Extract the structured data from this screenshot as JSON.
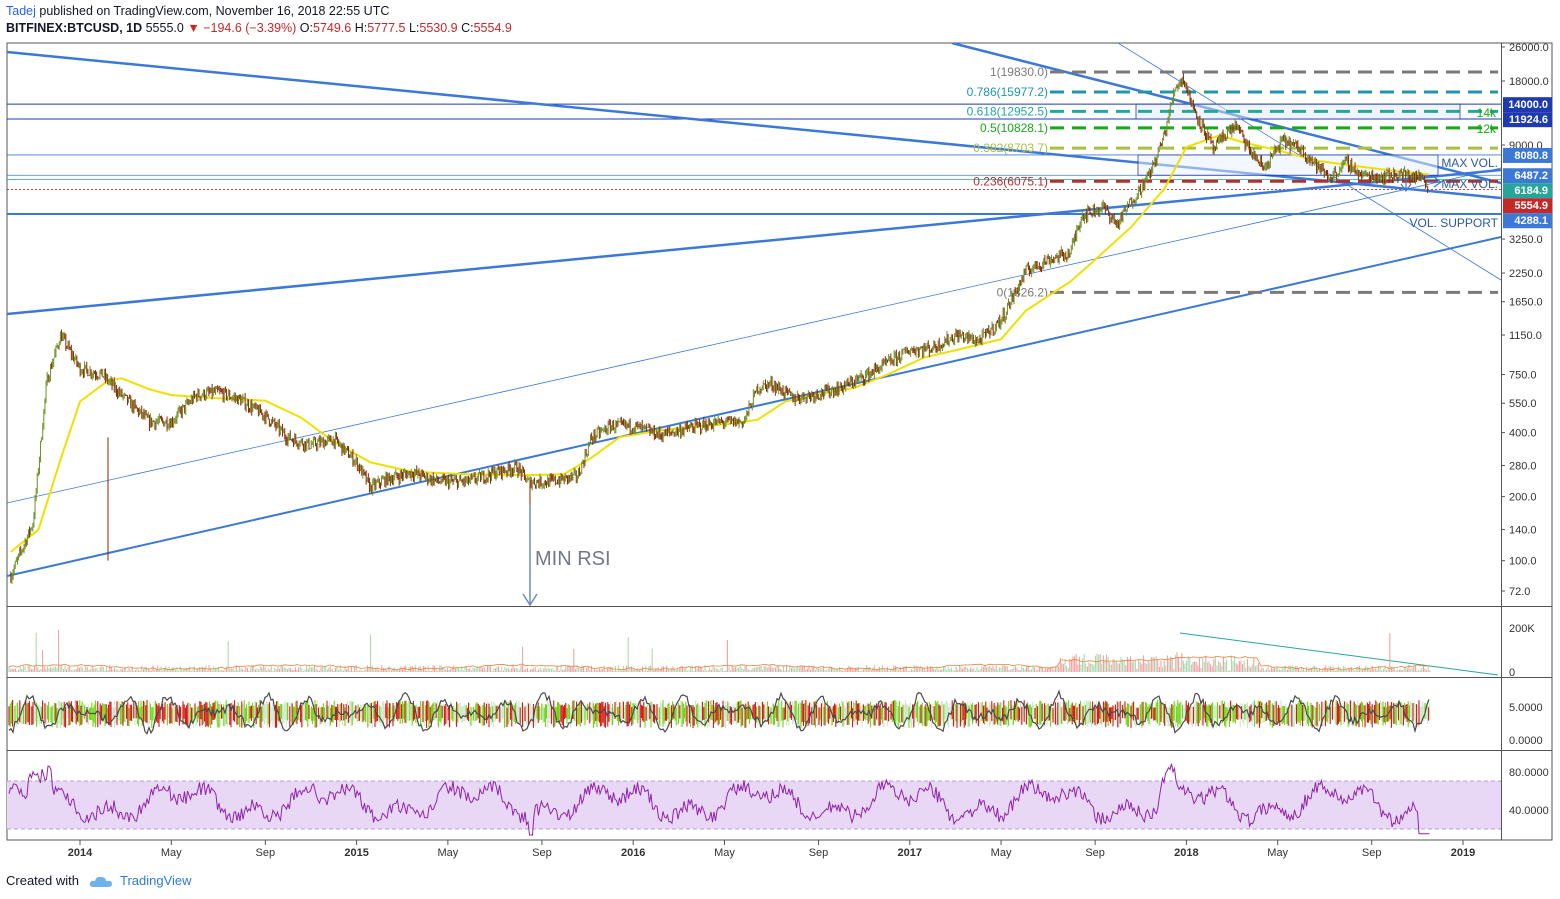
{
  "header": {
    "author": "Tadej",
    "published": "published on TradingView.com, November 16, 2018 22:55 UTC",
    "symbol": "BITFINEX:BTCUSD, 1D",
    "last": "5555.0",
    "change_arrow": "▼",
    "change": "−194.6 (−3.39%)",
    "o_label": "O:",
    "o_value": "5749.6",
    "h_label": "H:",
    "h_value": "5777.5",
    "l_label": "L:",
    "l_value": "5530.9",
    "c_label": "C:",
    "c_value": "5554.9"
  },
  "footer": {
    "created_with": "Created with",
    "brand": "TradingView"
  },
  "colors": {
    "trendline": "#3c78d8",
    "ma": "#f0e000",
    "candle_up": "#6b8e23",
    "candle_down": "#8b2500",
    "rsi_line": "#8e24aa",
    "rsi_band": "#e8d8f5"
  },
  "chart_data": [
    {
      "type": "line",
      "title": "BITFINEX:BTCUSD, 1D",
      "scale": "log",
      "y_ticks": [
        "26000.0",
        "18000.0",
        "14000.0",
        "11924.6",
        "9000.0",
        "8080.8",
        "6487.2",
        "6184.9",
        "5554.9",
        "4288.1",
        "3250.0",
        "2250.0",
        "1650.0",
        "1150.0",
        "750.0",
        "550.0",
        "400.0",
        "280.0",
        "200.0",
        "140.0",
        "100.0",
        "72.0"
      ],
      "price_tags": [
        {
          "label": "14000.0",
          "value": 14000,
          "color": "#1e3ab0"
        },
        {
          "label": "11924.6",
          "value": 11924.6,
          "color": "#1e3ab0"
        },
        {
          "label": "8080.8",
          "value": 8080.8,
          "color": "#3c78d8"
        },
        {
          "label": "6487.2",
          "value": 6487.2,
          "color": "#3c78d8"
        },
        {
          "label": "6184.9",
          "value": 6184.9,
          "color": "#26a69a"
        },
        {
          "label": "5554.9",
          "value": 5554.9,
          "color": "#c62828"
        },
        {
          "label": "4288.1",
          "value": 4288.1,
          "color": "#3c78d8"
        }
      ],
      "x_ticks": [
        "2014",
        "May",
        "Sep",
        "2015",
        "May",
        "Sep",
        "2016",
        "May",
        "Sep",
        "2017",
        "May",
        "Sep",
        "2018",
        "May",
        "Sep",
        "2019"
      ],
      "series": [
        {
          "values": [
            [
              2013.75,
              85
            ],
            [
              2013.83,
              150
            ],
            [
              2013.88,
              700
            ],
            [
              2013.93,
              1150
            ],
            [
              2014.0,
              800
            ],
            [
              2014.08,
              750
            ],
            [
              2014.15,
              600
            ],
            [
              2014.25,
              450
            ],
            [
              2014.33,
              450
            ],
            [
              2014.42,
              600
            ],
            [
              2014.5,
              620
            ],
            [
              2014.58,
              570
            ],
            [
              2014.67,
              480
            ],
            [
              2014.75,
              380
            ],
            [
              2014.83,
              350
            ],
            [
              2014.92,
              370
            ],
            [
              2015.0,
              290
            ],
            [
              2015.05,
              220
            ],
            [
              2015.1,
              240
            ],
            [
              2015.2,
              260
            ],
            [
              2015.3,
              235
            ],
            [
              2015.4,
              235
            ],
            [
              2015.5,
              260
            ],
            [
              2015.58,
              275
            ],
            [
              2015.62,
              235
            ],
            [
              2015.7,
              235
            ],
            [
              2015.8,
              250
            ],
            [
              2015.85,
              380
            ],
            [
              2015.92,
              430
            ],
            [
              2016.0,
              430
            ],
            [
              2016.1,
              390
            ],
            [
              2016.2,
              420
            ],
            [
              2016.3,
              445
            ],
            [
              2016.4,
              450
            ],
            [
              2016.45,
              650
            ],
            [
              2016.5,
              680
            ],
            [
              2016.58,
              580
            ],
            [
              2016.67,
              610
            ],
            [
              2016.75,
              650
            ],
            [
              2016.83,
              730
            ],
            [
              2016.92,
              850
            ],
            [
              2017.0,
              980
            ],
            [
              2017.08,
              1000
            ],
            [
              2017.17,
              1150
            ],
            [
              2017.25,
              1080
            ],
            [
              2017.33,
              1350
            ],
            [
              2017.42,
              2300
            ],
            [
              2017.5,
              2600
            ],
            [
              2017.58,
              2800
            ],
            [
              2017.62,
              4200
            ],
            [
              2017.7,
              4600
            ],
            [
              2017.75,
              3800
            ],
            [
              2017.8,
              4900
            ],
            [
              2017.85,
              6000
            ],
            [
              2017.88,
              7200
            ],
            [
              2017.92,
              10000
            ],
            [
              2017.96,
              17000
            ],
            [
              2017.99,
              18500
            ],
            [
              2018.02,
              14000
            ],
            [
              2018.05,
              11500
            ],
            [
              2018.1,
              8500
            ],
            [
              2018.13,
              9800
            ],
            [
              2018.18,
              11200
            ],
            [
              2018.22,
              8800
            ],
            [
              2018.28,
              7000
            ],
            [
              2018.35,
              9500
            ],
            [
              2018.42,
              8500
            ],
            [
              2018.48,
              7000
            ],
            [
              2018.52,
              6300
            ],
            [
              2018.58,
              7500
            ],
            [
              2018.63,
              6500
            ],
            [
              2018.7,
              6400
            ],
            [
              2018.78,
              6600
            ],
            [
              2018.82,
              6400
            ],
            [
              2018.86,
              6300
            ],
            [
              2018.875,
              5555
            ]
          ]
        }
      ],
      "ma_series": [
        [
          2013.75,
          110
        ],
        [
          2013.85,
          140
        ],
        [
          2013.93,
          300
        ],
        [
          2014.0,
          560
        ],
        [
          2014.1,
          700
        ],
        [
          2014.15,
          720
        ],
        [
          2014.25,
          640
        ],
        [
          2014.33,
          600
        ],
        [
          2014.5,
          580
        ],
        [
          2014.67,
          565
        ],
        [
          2014.8,
          470
        ],
        [
          2014.92,
          360
        ],
        [
          2015.05,
          290
        ],
        [
          2015.2,
          262
        ],
        [
          2015.4,
          255
        ],
        [
          2015.6,
          252
        ],
        [
          2015.75,
          255
        ],
        [
          2015.85,
          305
        ],
        [
          2015.95,
          380
        ],
        [
          2016.1,
          410
        ],
        [
          2016.25,
          428
        ],
        [
          2016.35,
          440
        ],
        [
          2016.45,
          460
        ],
        [
          2016.55,
          560
        ],
        [
          2016.65,
          600
        ],
        [
          2016.8,
          650
        ],
        [
          2016.92,
          750
        ],
        [
          2017.05,
          900
        ],
        [
          2017.2,
          1000
        ],
        [
          2017.33,
          1100
        ],
        [
          2017.42,
          1500
        ],
        [
          2017.58,
          2050
        ],
        [
          2017.67,
          2600
        ],
        [
          2017.8,
          3700
        ],
        [
          2017.92,
          5600
        ],
        [
          2018.0,
          8800
        ],
        [
          2018.12,
          10000
        ],
        [
          2018.2,
          9300
        ],
        [
          2018.33,
          8500
        ],
        [
          2018.47,
          7600
        ],
        [
          2018.6,
          7200
        ],
        [
          2018.75,
          6800
        ],
        [
          2018.875,
          6550
        ]
      ],
      "fib_levels": [
        {
          "label": "1(19830.0)",
          "value": 19830,
          "color": "#7a7a7a"
        },
        {
          "label": "0.786(15977.2)",
          "value": 15977.2,
          "color": "#2196a8"
        },
        {
          "label": "0.618(12952.5)",
          "value": 12952.5,
          "color": "#26a69a"
        },
        {
          "label": "0.5(10828.1)",
          "value": 10828.1,
          "color": "#18a818"
        },
        {
          "label": "0.382(8703.7)",
          "value": 8703.7,
          "color": "#a8c040"
        },
        {
          "label": "0.236(6075.1)",
          "value": 6075.1,
          "color": "#b03030"
        },
        {
          "label": "0(1826.2)",
          "value": 1826.2,
          "color": "#7a7a7a"
        }
      ],
      "annotations": [
        "MIN RSI",
        "MAX VOL.",
        "MAX VOL.",
        "VOL. SUPPORT",
        "14k",
        "12k"
      ]
    },
    {
      "type": "bar",
      "y_ticks": [
        "200K",
        "0"
      ]
    },
    {
      "type": "line",
      "y_ticks": [
        "5.0000",
        "0.0000"
      ]
    },
    {
      "type": "line",
      "y_ticks": [
        "80.0000",
        "40.0000"
      ],
      "bands": [
        70,
        30
      ]
    }
  ]
}
